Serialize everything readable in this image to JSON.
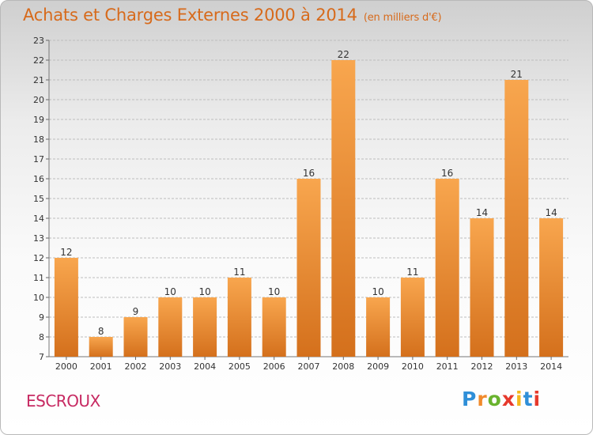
{
  "header": {
    "title": "Achats et Charges Externes 2000 à 2014",
    "unit": "(en milliers d'€)"
  },
  "footer": {
    "commune": "ESCROUX",
    "logo": "Proxiti"
  },
  "colors": {
    "bar_light": "#f8a64e",
    "bar_dark": "#d4701c",
    "title": "#d76a1b",
    "commune": "#c72a62"
  },
  "chart_data": {
    "type": "bar",
    "title": "Achats et Charges Externes 2000 à 2014",
    "subtitle": "(en milliers d'€)",
    "categories": [
      "2000",
      "2001",
      "2002",
      "2003",
      "2004",
      "2005",
      "2006",
      "2007",
      "2008",
      "2009",
      "2010",
      "2011",
      "2012",
      "2013",
      "2014"
    ],
    "values": [
      12,
      8,
      9,
      10,
      10,
      11,
      10,
      16,
      22,
      10,
      11,
      16,
      14,
      21,
      14
    ],
    "ylim": [
      7,
      23
    ],
    "yticks": [
      7,
      8,
      9,
      10,
      11,
      12,
      13,
      14,
      15,
      16,
      17,
      18,
      19,
      20,
      21,
      22,
      23
    ],
    "grid": true
  }
}
